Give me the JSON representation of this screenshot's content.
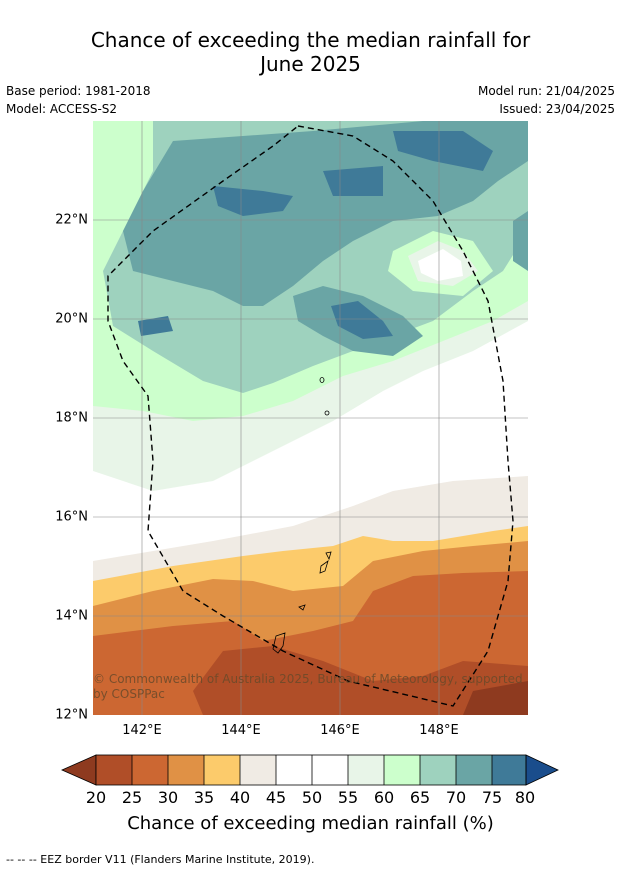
{
  "title_line1": "Chance of exceeding the median rainfall for",
  "title_line2": "June 2025",
  "meta": {
    "base_period": "Base period: 1981-2018",
    "model": "Model: ACCESS-S2",
    "model_run": "Model run: 21/04/2025",
    "issued": "Issued: 23/04/2025"
  },
  "map": {
    "lat_ticks": [
      "22°N",
      "20°N",
      "18°N",
      "16°N",
      "14°N",
      "12°N"
    ],
    "lon_ticks": [
      "142°E",
      "144°E",
      "146°E",
      "148°E"
    ],
    "copyright": "© Commonwealth of Australia 2025, Bureau of Meteorology, supported by COSPPac",
    "eez_legend": "-- -- -- EEZ border V11 (Flanders Marine Institute, 2019)."
  },
  "colorbar": {
    "title": "Chance of exceeding median rainfall (%)",
    "labels": [
      "20",
      "25",
      "30",
      "35",
      "40",
      "45",
      "50",
      "55",
      "60",
      "65",
      "70",
      "75",
      "80"
    ],
    "colors": {
      "below20": "#8e3a1f",
      "c20_25": "#b04e28",
      "c25_30": "#cc6732",
      "c30_35": "#e09145",
      "c35_40": "#fccb6b",
      "c40_45": "#f0ebe4",
      "c45_50": "#ffffff",
      "c50_55": "#ffffff",
      "c55_60": "#e8f5e8",
      "c60_65": "#ccffcc",
      "c65_70": "#9ed2be",
      "c70_75": "#6aa5a5",
      "c75_80": "#3f7a98",
      "above80": "#1a4d8c"
    }
  }
}
